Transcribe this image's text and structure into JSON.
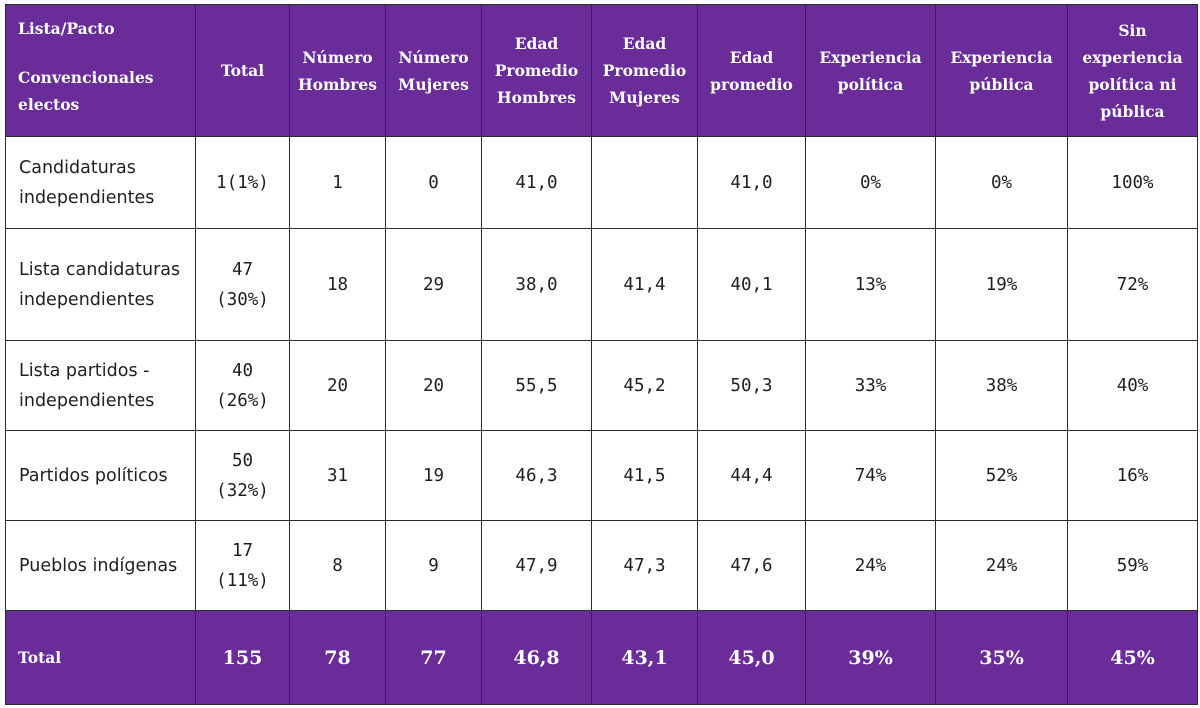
{
  "colors": {
    "header_bg": "#6a2c98",
    "header_text": "#ffffff",
    "border": "#2b2b2b"
  },
  "headers": {
    "first_line1": "Lista/Pacto",
    "first_line2": "Convencionales electos",
    "total": "Total",
    "num_hombres": "Número Hombres",
    "num_mujeres": "Número Mujeres",
    "edad_hombres": "Edad Promedio Hombres",
    "edad_mujeres": "Edad Promedio Mujeres",
    "edad_promedio": "Edad promedio",
    "exp_politica": "Experiencia política",
    "exp_publica": "Experiencia pública",
    "sin_experiencia": "Sin experiencia política ni pública"
  },
  "chart_data": {
    "type": "table",
    "columns": [
      "Lista/Pacto Convencionales electos",
      "Total",
      "Número Hombres",
      "Número Mujeres",
      "Edad Promedio Hombres",
      "Edad Promedio Mujeres",
      "Edad promedio",
      "Experiencia política",
      "Experiencia pública",
      "Sin experiencia política ni pública"
    ],
    "rows": [
      {
        "lista": "Candidaturas independientes",
        "total": "1(1%)",
        "hombres": "1",
        "mujeres": "0",
        "edad_h": "41,0",
        "edad_m": "",
        "edad": "41,0",
        "exp_pol": "0%",
        "exp_pub": "0%",
        "sin_exp": "100%"
      },
      {
        "lista": "Lista candidaturas independientes",
        "total": "47 (30%)",
        "hombres": "18",
        "mujeres": "29",
        "edad_h": "38,0",
        "edad_m": "41,4",
        "edad": "40,1",
        "exp_pol": "13%",
        "exp_pub": "19%",
        "sin_exp": "72%"
      },
      {
        "lista": "Lista partidos - independientes",
        "total": "40 (26%)",
        "hombres": "20",
        "mujeres": "20",
        "edad_h": "55,5",
        "edad_m": "45,2",
        "edad": "50,3",
        "exp_pol": "33%",
        "exp_pub": "38%",
        "sin_exp": "40%"
      },
      {
        "lista": "Partidos políticos",
        "total": "50 (32%)",
        "hombres": "31",
        "mujeres": "19",
        "edad_h": "46,3",
        "edad_m": "41,5",
        "edad": "44,4",
        "exp_pol": "74%",
        "exp_pub": "52%",
        "sin_exp": "16%"
      },
      {
        "lista": "Pueblos indígenas",
        "total": "17 (11%)",
        "hombres": "8",
        "mujeres": "9",
        "edad_h": "47,9",
        "edad_m": "47,3",
        "edad": "47,6",
        "exp_pol": "24%",
        "exp_pub": "24%",
        "sin_exp": "59%"
      }
    ],
    "total_row": {
      "lista": "Total",
      "total": "155",
      "hombres": "78",
      "mujeres": "77",
      "edad_h": "46,8",
      "edad_m": "43,1",
      "edad": "45,0",
      "exp_pol": "39%",
      "exp_pub": "35%",
      "sin_exp": "45%"
    }
  }
}
